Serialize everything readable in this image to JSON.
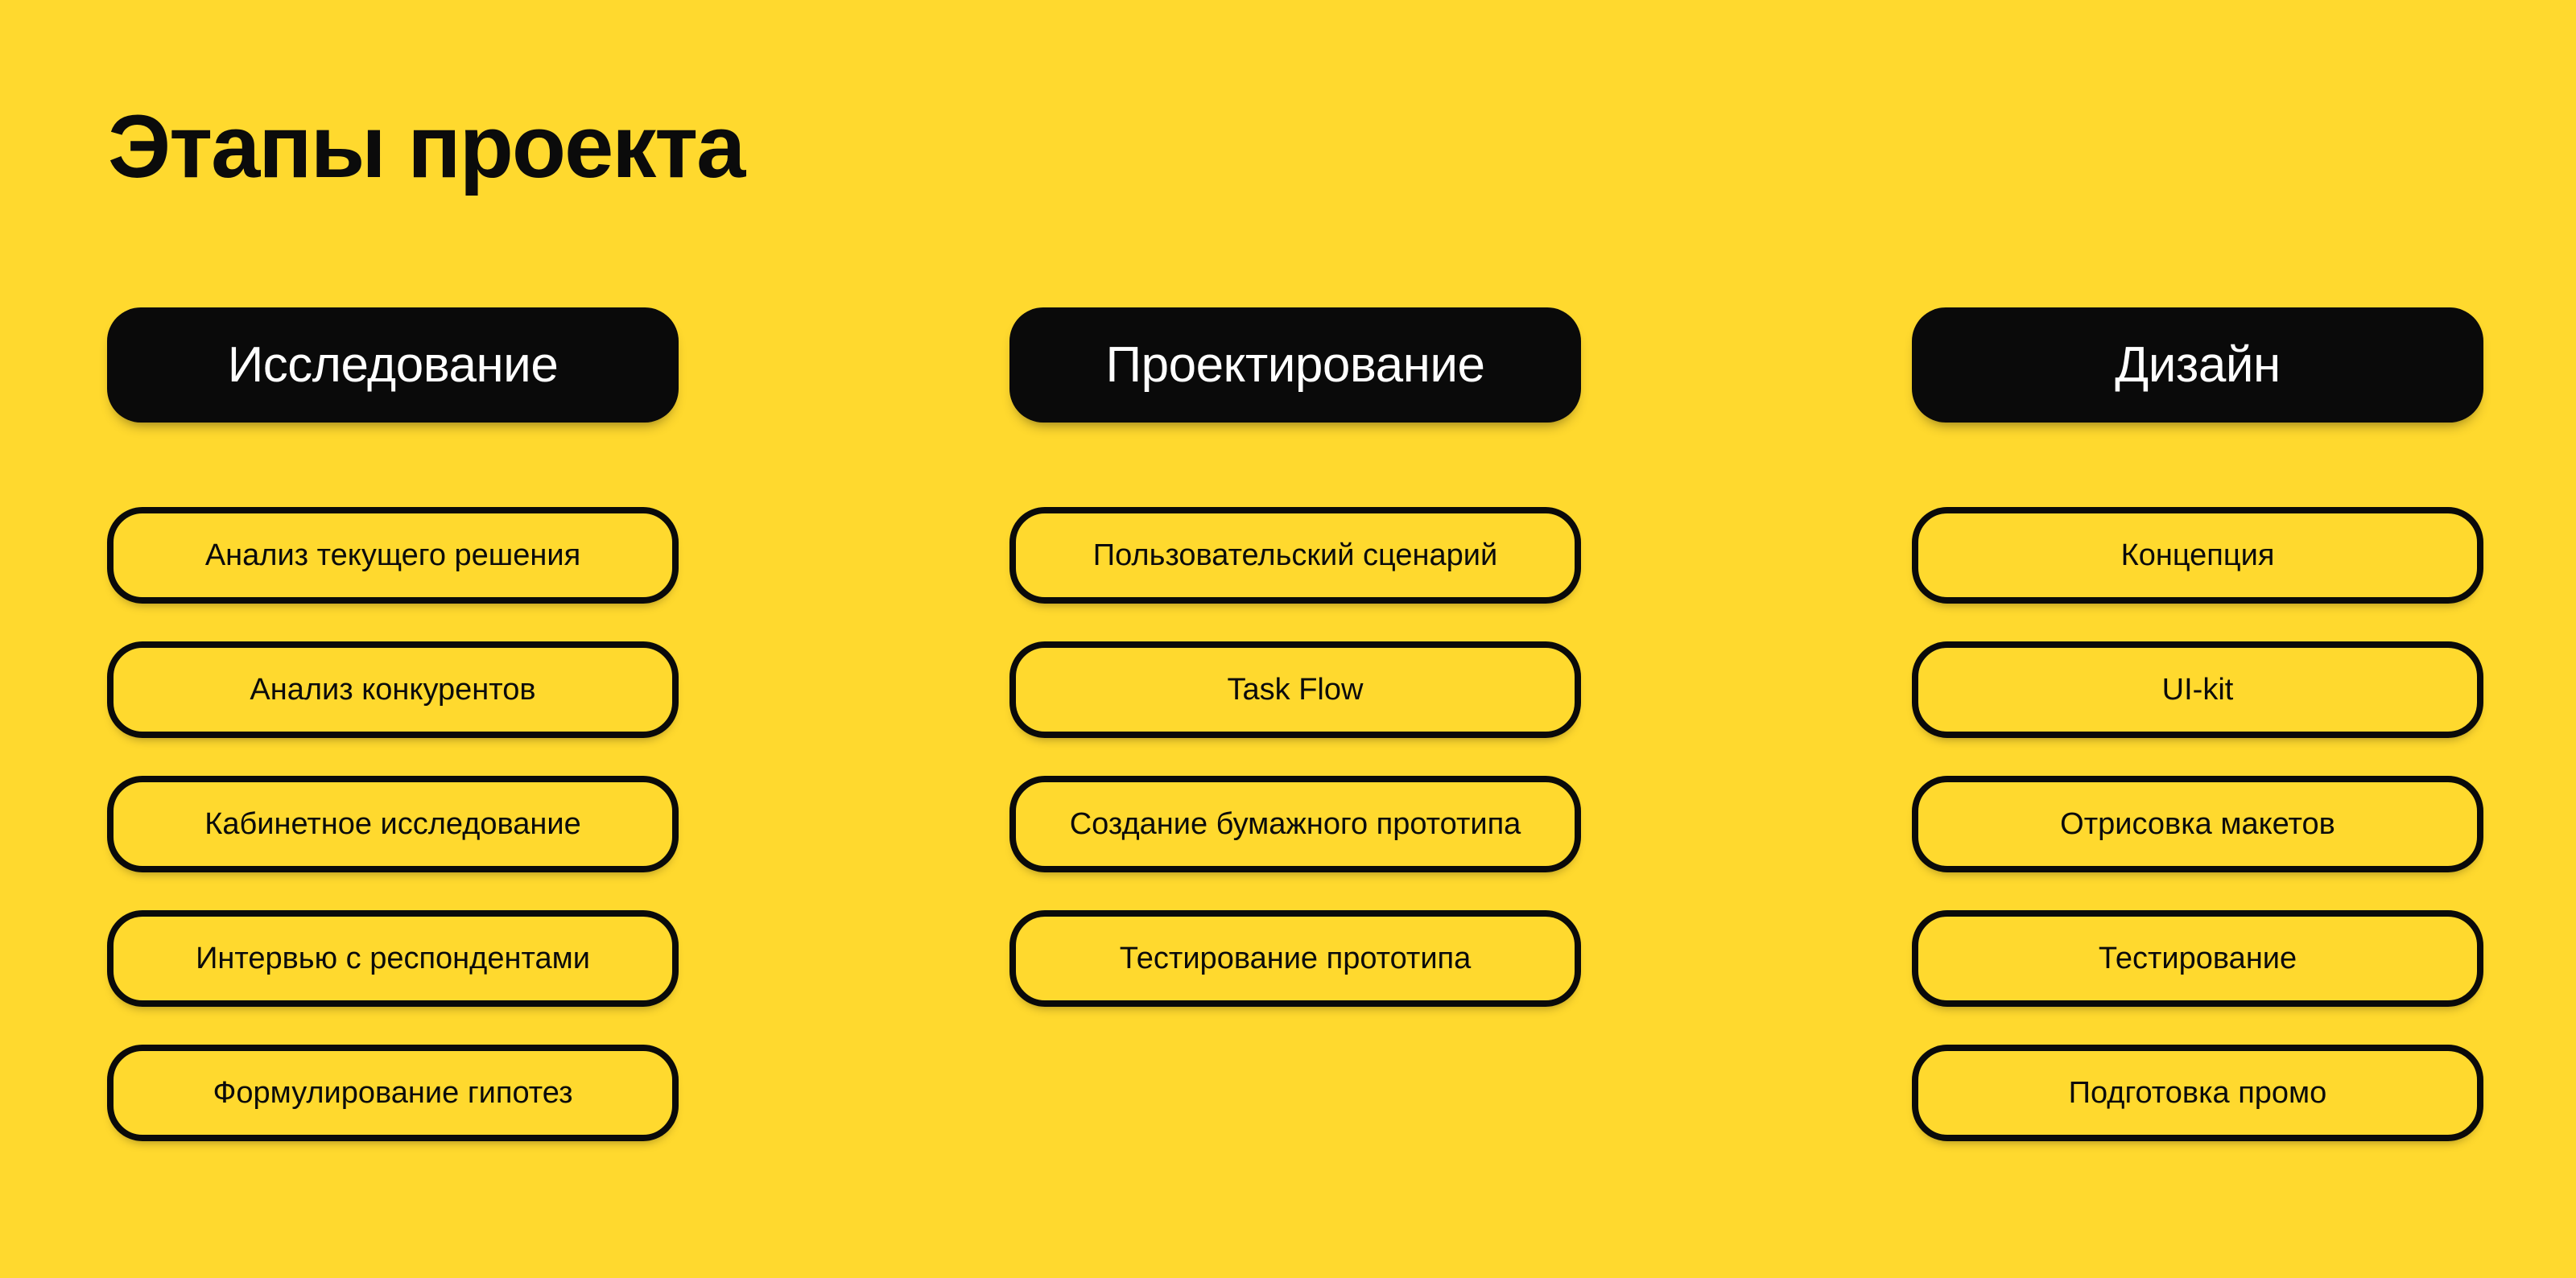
{
  "title": "Этапы проекта",
  "columns": [
    {
      "id": "research",
      "header": "Исследование",
      "items": [
        "Анализ текущего решения",
        "Анализ конкурентов",
        "Кабинетное исследование",
        "Интервью с респондентами",
        "Формулирование гипотез"
      ]
    },
    {
      "id": "planning",
      "header": "Проектирование",
      "items": [
        "Пользовательский сценарий",
        "Task Flow",
        "Создание бумажного прототипа",
        "Тестирование прототипа"
      ]
    },
    {
      "id": "design",
      "header": "Дизайн",
      "items": [
        "Концепция",
        "UI-kit",
        "Отрисовка макетов",
        "Тестирование",
        "Подготовка промо"
      ]
    }
  ],
  "colors": {
    "background": "#FFD92E",
    "pill_fill": "#0A0A0A",
    "pill_text": "#FFFFFF",
    "outline": "#0A0A0A",
    "text": "#0B0B0B"
  }
}
